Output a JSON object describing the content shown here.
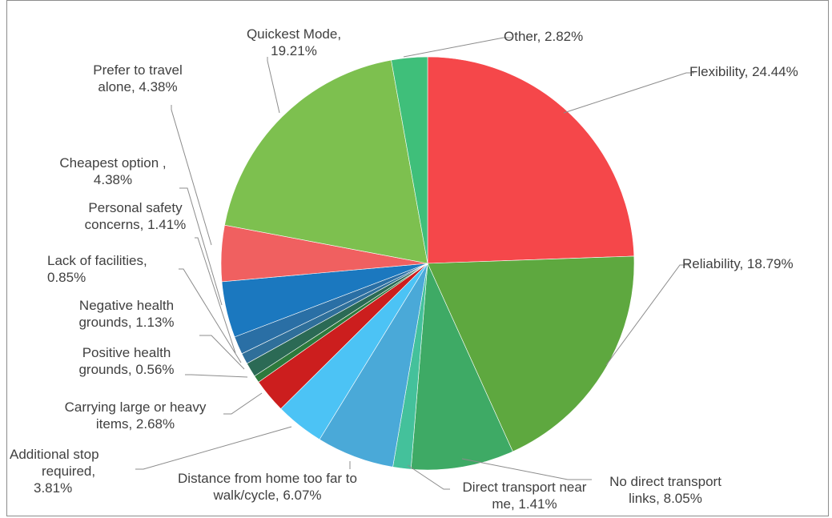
{
  "chart_data": {
    "type": "pie",
    "slices": [
      {
        "category": "Flexibility",
        "value": 24.44,
        "label": "Flexibility, 24.44%",
        "color": "#f5474a"
      },
      {
        "category": "Reliability",
        "value": 18.79,
        "label": "Reliability, 18.79%",
        "color": "#5ea83f"
      },
      {
        "category": "No direct transport links",
        "value": 8.05,
        "label": "No direct transport links, 8.05%",
        "color": "#3eaa65"
      },
      {
        "category": "Direct transport near me",
        "value": 1.41,
        "label": "Direct transport near me, 1.41%",
        "color": "#44c19b"
      },
      {
        "category": "Distance from home too far to walk/cycle",
        "value": 6.07,
        "label": "Distance from home too far to walk/cycle, 6.07%",
        "color": "#4aa9d8"
      },
      {
        "category": "Additional stop required",
        "value": 3.81,
        "label": "Additional stop required, 3.81%",
        "color": "#4cc3f5"
      },
      {
        "category": "Carrying large or heavy items",
        "value": 2.68,
        "label": "Carrying large or heavy items, 2.68%",
        "color": "#cc1e1e"
      },
      {
        "category": "Positive health grounds",
        "value": 0.56,
        "label": "Positive health grounds, 0.56%",
        "color": "#2d7a3c"
      },
      {
        "category": "Negative health grounds",
        "value": 1.13,
        "label": "Negative health grounds, 1.13%",
        "color": "#2b6a55"
      },
      {
        "category": "Lack of facilities",
        "value": 0.85,
        "label": "Lack of facilities, 0.85%",
        "color": "#2f6f9a"
      },
      {
        "category": "Personal safety concerns",
        "value": 1.41,
        "label": "Personal safety concerns, 1.41%",
        "color": "#2a6fa5"
      },
      {
        "category": "Cheapest option",
        "value": 4.38,
        "label": "Cheapest option , 4.38%",
        "color": "#1b78bf"
      },
      {
        "category": "Prefer to travel alone",
        "value": 4.38,
        "label": "Prefer to travel alone, 4.38%",
        "color": "#f06060"
      },
      {
        "category": "Quickest Mode",
        "value": 19.21,
        "label": "Quickest Mode, 19.21%",
        "color": "#7dc04f"
      },
      {
        "category": "Other",
        "value": 2.82,
        "label": "Other, 2.82%",
        "color": "#3fbf7a"
      }
    ]
  },
  "labels": {
    "flexibility": [
      "Flexibility, 24.44%"
    ],
    "reliability": [
      "Reliability, 18.79%"
    ],
    "no_direct": [
      "No direct transport",
      "links, 8.05%"
    ],
    "direct_near": [
      "Direct transport near",
      "me, 1.41%"
    ],
    "distance": [
      "Distance from home too far to",
      "walk/cycle, 6.07%"
    ],
    "additional_stop": [
      "Additional stop",
      "required,",
      "3.81%"
    ],
    "carrying": [
      "Carrying large or heavy",
      "items, 2.68%"
    ],
    "positive": [
      "Positive health",
      "grounds, 0.56%"
    ],
    "negative": [
      "Negative health",
      "grounds, 1.13%"
    ],
    "lack": [
      "Lack of facilities,",
      "0.85%"
    ],
    "safety": [
      "Personal safety",
      "concerns, 1.41%"
    ],
    "cheapest": [
      "Cheapest option ,",
      "4.38%"
    ],
    "prefer_alone": [
      "Prefer to travel",
      "alone, 4.38%"
    ],
    "quickest": [
      "Quickest Mode,",
      "19.21%"
    ],
    "other": [
      "Other, 2.82%"
    ]
  }
}
